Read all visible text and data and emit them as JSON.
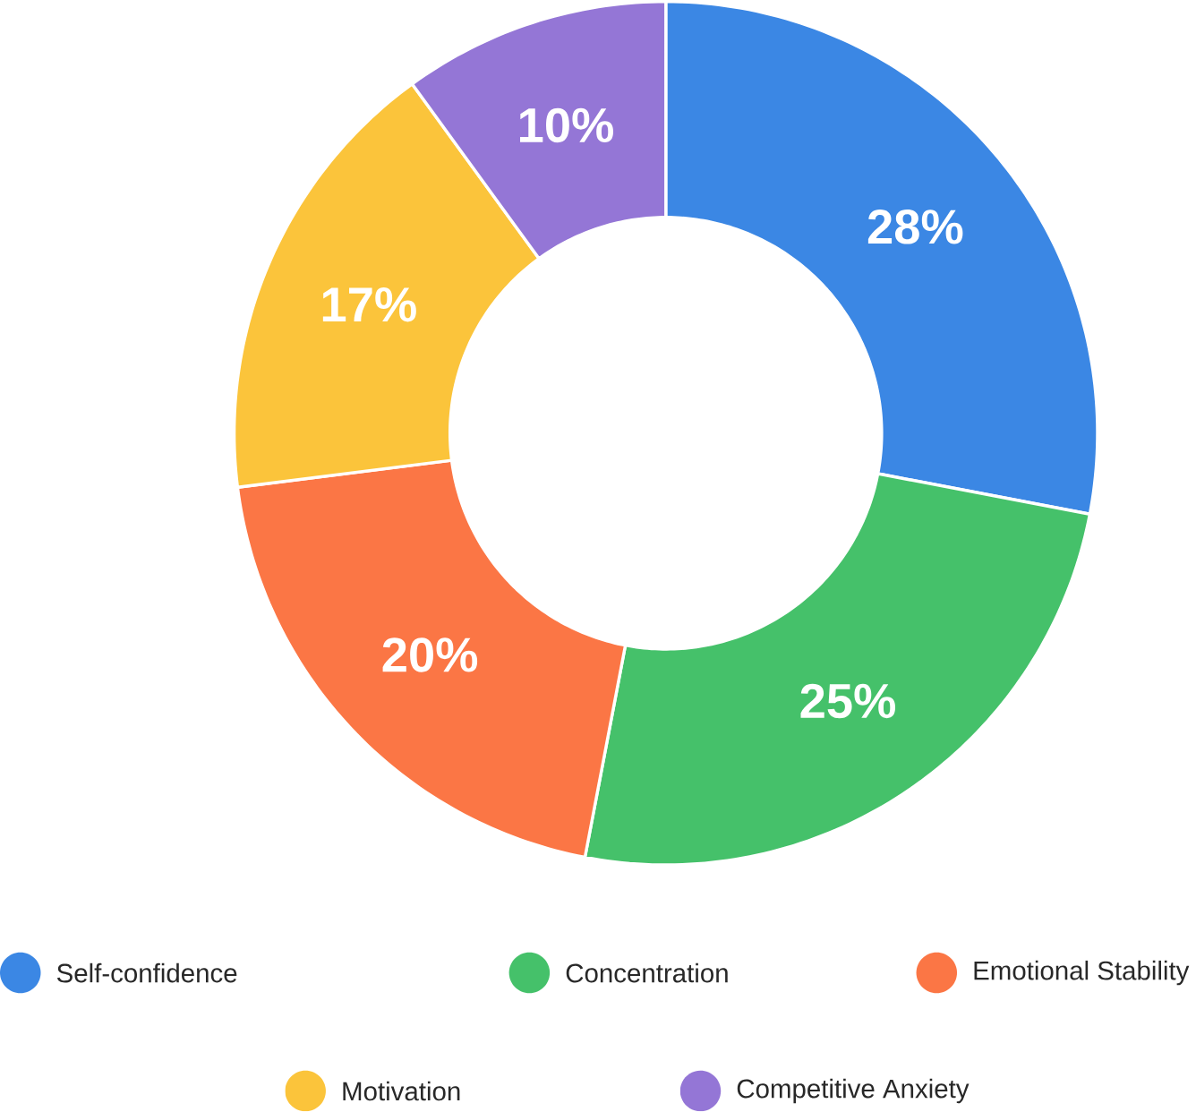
{
  "chart_data": {
    "type": "donut",
    "categories": [
      "Self-confidence",
      "Concentration",
      "Emotional Stability",
      "Motivation",
      "Competitive Anxiety"
    ],
    "values": [
      28,
      25,
      20,
      17,
      10
    ],
    "colors": [
      "#3b87e4",
      "#45c16a",
      "#fb7645",
      "#fbc43b",
      "#9476d6"
    ],
    "value_labels": [
      "28%",
      "25%",
      "20%",
      "17%",
      "10%"
    ],
    "legend": "bottom"
  }
}
